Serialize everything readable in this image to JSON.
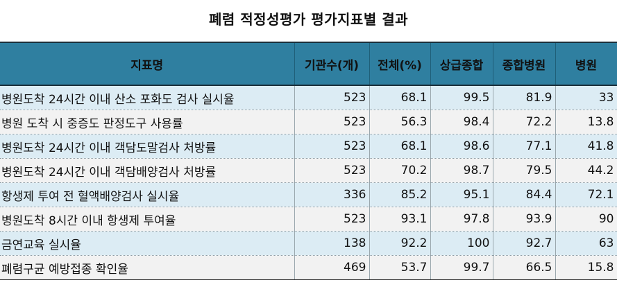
{
  "title": "폐렴 적정성평가 평가지표별 결과",
  "table": {
    "headers": [
      "지표명",
      "기관수(개)",
      "전체(%)",
      "상급종합",
      "종합병원",
      "병원"
    ],
    "rows": [
      {
        "name": "병원도착 24시간 이내 산소 포화도 검사 실시율",
        "count": "523",
        "total": "68.1",
        "tertiary": "99.5",
        "general": "81.9",
        "hospital": "33"
      },
      {
        "name": "병원 도착 시 중증도 판정도구 사용률",
        "count": "523",
        "total": "56.3",
        "tertiary": "98.4",
        "general": "72.2",
        "hospital": "13.8"
      },
      {
        "name": "병원도착 24시간 이내 객담도말검사 처방률",
        "count": "523",
        "total": "68.1",
        "tertiary": "98.6",
        "general": "77.1",
        "hospital": "41.8"
      },
      {
        "name": "병원도착 24시간 이내 객담배양검사 처방률",
        "count": "523",
        "total": "70.2",
        "tertiary": "98.7",
        "general": "79.5",
        "hospital": "44.2"
      },
      {
        "name": "항생제 투여 전 혈액배양검사 실시율",
        "count": "336",
        "total": "85.2",
        "tertiary": "95.1",
        "general": "84.4",
        "hospital": "72.1"
      },
      {
        "name": "병원도착 8시간 이내 항생제 투여율",
        "count": "523",
        "total": "93.1",
        "tertiary": "97.8",
        "general": "93.9",
        "hospital": "90"
      },
      {
        "name": "금연교육 실시율",
        "count": "138",
        "total": "92.2",
        "tertiary": "100",
        "general": "92.7",
        "hospital": "63"
      },
      {
        "name": "폐렴구균 예방접종 확인율",
        "count": "469",
        "total": "53.7",
        "tertiary": "99.7",
        "general": "66.5",
        "hospital": "15.8"
      }
    ]
  },
  "colors": {
    "header_bg": "#2f7fa0",
    "row_odd_bg": "#dcecf4",
    "row_even_bg": "#f2f2f2"
  }
}
